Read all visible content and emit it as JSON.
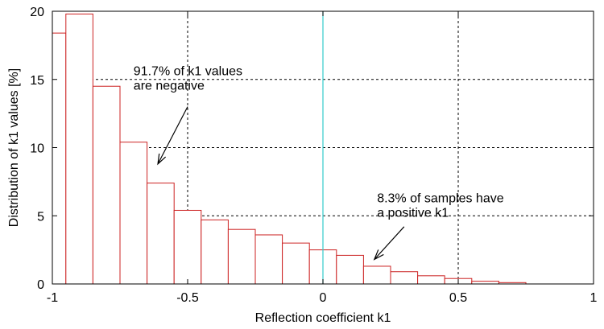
{
  "chart_data": {
    "type": "bar",
    "xlabel": "Reflection coefficient k1",
    "ylabel": "Distribution of k1 values [%]",
    "xlim": [
      -1,
      1
    ],
    "ylim": [
      0,
      20
    ],
    "x_ticks": [
      -1,
      -0.5,
      0,
      0.5,
      1
    ],
    "y_ticks": [
      0,
      5,
      10,
      15,
      20
    ],
    "x_tick_labels": [
      "-1",
      "-0.5",
      "0",
      "0.5",
      "1"
    ],
    "y_tick_labels": [
      "0",
      "5",
      "10",
      "15",
      "20"
    ],
    "grid": true,
    "bar_color": "#cc2222",
    "zero_line_color": "#33cccc",
    "bins": [
      {
        "x0": -1.0,
        "x1": -0.95,
        "value": 18.4
      },
      {
        "x0": -0.95,
        "x1": -0.85,
        "value": 19.8
      },
      {
        "x0": -0.85,
        "x1": -0.75,
        "value": 14.5
      },
      {
        "x0": -0.75,
        "x1": -0.65,
        "value": 10.4
      },
      {
        "x0": -0.65,
        "x1": -0.55,
        "value": 7.4
      },
      {
        "x0": -0.55,
        "x1": -0.45,
        "value": 5.4
      },
      {
        "x0": -0.45,
        "x1": -0.35,
        "value": 4.7
      },
      {
        "x0": -0.35,
        "x1": -0.25,
        "value": 4.0
      },
      {
        "x0": -0.25,
        "x1": -0.15,
        "value": 3.6
      },
      {
        "x0": -0.15,
        "x1": -0.05,
        "value": 3.0
      },
      {
        "x0": -0.05,
        "x1": 0.05,
        "value": 2.5
      },
      {
        "x0": 0.05,
        "x1": 0.15,
        "value": 2.1
      },
      {
        "x0": 0.15,
        "x1": 0.25,
        "value": 1.3
      },
      {
        "x0": 0.25,
        "x1": 0.35,
        "value": 0.9
      },
      {
        "x0": 0.35,
        "x1": 0.45,
        "value": 0.6
      },
      {
        "x0": 0.45,
        "x1": 0.55,
        "value": 0.4
      },
      {
        "x0": 0.55,
        "x1": 0.65,
        "value": 0.2
      },
      {
        "x0": 0.65,
        "x1": 0.75,
        "value": 0.1
      }
    ],
    "annotations": [
      {
        "lines": [
          "91.7% of k1 values",
          "are negative"
        ],
        "text_x": -0.7,
        "text_y": 15.3,
        "arrow_from": [
          -0.5,
          13.0
        ],
        "arrow_to": [
          -0.61,
          8.8
        ]
      },
      {
        "lines": [
          "8.3% of samples have",
          "a positive k1"
        ],
        "text_x": 0.2,
        "text_y": 6.0,
        "arrow_from": [
          0.3,
          4.2
        ],
        "arrow_to": [
          0.19,
          1.8
        ]
      }
    ]
  }
}
